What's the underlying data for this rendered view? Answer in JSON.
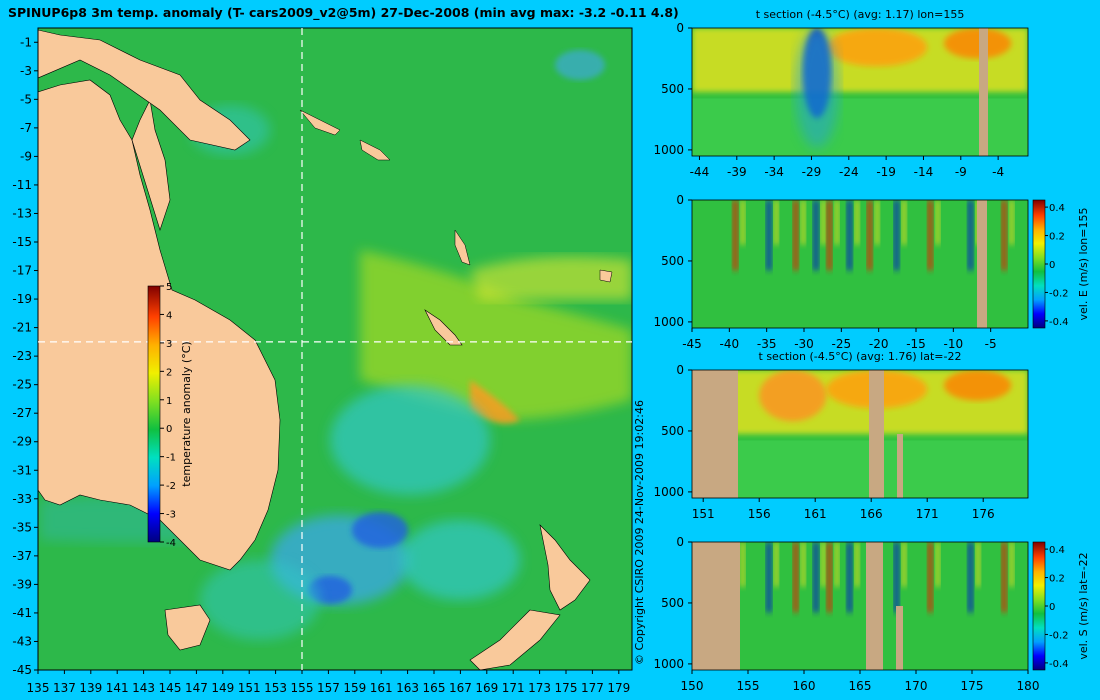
{
  "page": {
    "title": "SPINUP6p8 3m temp. anomaly (T- cars2009_v2@5m) 27-Dec-2008 (min avg max: -3.2 -0.11 4.8)",
    "copyright": "© Copyright CSIRO 2009   24-Nov-2009 19:02:46",
    "background": "#00CCFF"
  },
  "chart_data": [
    {
      "id": "map",
      "type": "heatmap",
      "title": "SPINUP6p8 3m temp. anomaly (T- cars2009_v2@5m) 27-Dec-2008 (min avg max: -3.2 -0.11 4.8)",
      "x_ticks": [
        "135",
        "137",
        "139",
        "141",
        "143",
        "145",
        "147",
        "149",
        "151",
        "153",
        "155",
        "157",
        "159",
        "161",
        "163",
        "165",
        "167",
        "169",
        "171",
        "173",
        "175",
        "177",
        "179"
      ],
      "x_values": [
        135,
        137,
        139,
        141,
        143,
        145,
        147,
        149,
        151,
        153,
        155,
        157,
        159,
        161,
        163,
        165,
        167,
        169,
        171,
        173,
        175,
        177,
        179
      ],
      "xlim": [
        135,
        180
      ],
      "y_ticks": [
        "-1",
        "-3",
        "-5",
        "-7",
        "-9",
        "-11",
        "-13",
        "-15",
        "-17",
        "-19",
        "-21",
        "-23",
        "-25",
        "-27",
        "-29",
        "-31",
        "-33",
        "-35",
        "-37",
        "-39",
        "-41",
        "-43",
        "-45"
      ],
      "y_values": [
        -1,
        -3,
        -5,
        -7,
        -9,
        -11,
        -13,
        -15,
        -17,
        -19,
        -21,
        -23,
        -25,
        -27,
        -29,
        -31,
        -33,
        -35,
        -37,
        -39,
        -41,
        -43,
        -45
      ],
      "ylim": [
        -45,
        0
      ],
      "crosshair": {
        "lon": 155,
        "lat": -22
      },
      "colorbar": {
        "label": "temperature anomaly (°C)",
        "ticks": [
          "5",
          "4",
          "3",
          "2",
          "1",
          "0",
          "-1",
          "-2",
          "-3",
          "-4"
        ],
        "tick_values": [
          5,
          4,
          3,
          2,
          1,
          0,
          -1,
          -2,
          -3,
          -4
        ],
        "range": [
          -4,
          5
        ]
      },
      "land_color": "#F9C99B"
    },
    {
      "id": "tsec-lon",
      "type": "heatmap",
      "title": "t section (-4.5°C) (avg: 1.17) lon=155",
      "x_ticks": [
        "-44",
        "-39",
        "-34",
        "-29",
        "-24",
        "-19",
        "-14",
        "-9",
        "-4"
      ],
      "x_values": [
        -44,
        -39,
        -34,
        -29,
        -24,
        -19,
        -14,
        -9,
        -4
      ],
      "xlim": [
        -45,
        0
      ],
      "y_ticks": [
        "0",
        "500",
        "1000"
      ],
      "y_values": [
        0,
        500,
        1000
      ],
      "ylim": [
        1050,
        0
      ]
    },
    {
      "id": "vel-lon",
      "type": "heatmap",
      "title": "",
      "x_ticks": [
        "-45",
        "-40",
        "-35",
        "-30",
        "-25",
        "-20",
        "-15",
        "-10",
        "-5"
      ],
      "x_values": [
        -45,
        -40,
        -35,
        -30,
        -25,
        -20,
        -15,
        -10,
        -5
      ],
      "xlim": [
        -45,
        0
      ],
      "y_ticks": [
        "0",
        "500",
        "1000"
      ],
      "y_values": [
        0,
        500,
        1000
      ],
      "ylim": [
        1050,
        0
      ],
      "colorbar": {
        "label": "vel. E (m/s) lon=155",
        "ticks": [
          "0.4",
          "0.2",
          "0",
          "-0.2",
          "-0.4"
        ],
        "tick_values": [
          0.4,
          0.2,
          0,
          -0.2,
          -0.4
        ],
        "range": [
          -0.45,
          0.45
        ]
      }
    },
    {
      "id": "tsec-lat",
      "type": "heatmap",
      "title": "t section (-4.5°C) (avg: 1.76) lat=-22",
      "x_ticks": [
        "151",
        "156",
        "161",
        "166",
        "171",
        "176"
      ],
      "x_values": [
        151,
        156,
        161,
        166,
        171,
        176
      ],
      "xlim": [
        150,
        180
      ],
      "y_ticks": [
        "0",
        "500",
        "1000"
      ],
      "y_values": [
        0,
        500,
        1000
      ],
      "ylim": [
        1050,
        0
      ]
    },
    {
      "id": "vel-lat",
      "type": "heatmap",
      "title": "",
      "x_ticks": [
        "150",
        "155",
        "160",
        "165",
        "170",
        "175",
        "180"
      ],
      "x_values": [
        150,
        155,
        160,
        165,
        170,
        175,
        180
      ],
      "xlim": [
        150,
        180
      ],
      "y_ticks": [
        "0",
        "500",
        "1000"
      ],
      "y_values": [
        0,
        500,
        1000
      ],
      "ylim": [
        1050,
        0
      ],
      "colorbar": {
        "label": "vel. S (m/s) lat=-22",
        "ticks": [
          "0.4",
          "0.2",
          "0",
          "-0.2",
          "-0.4"
        ],
        "tick_values": [
          0.4,
          0.2,
          0,
          -0.2,
          -0.4
        ],
        "range": [
          -0.45,
          0.45
        ]
      }
    }
  ]
}
